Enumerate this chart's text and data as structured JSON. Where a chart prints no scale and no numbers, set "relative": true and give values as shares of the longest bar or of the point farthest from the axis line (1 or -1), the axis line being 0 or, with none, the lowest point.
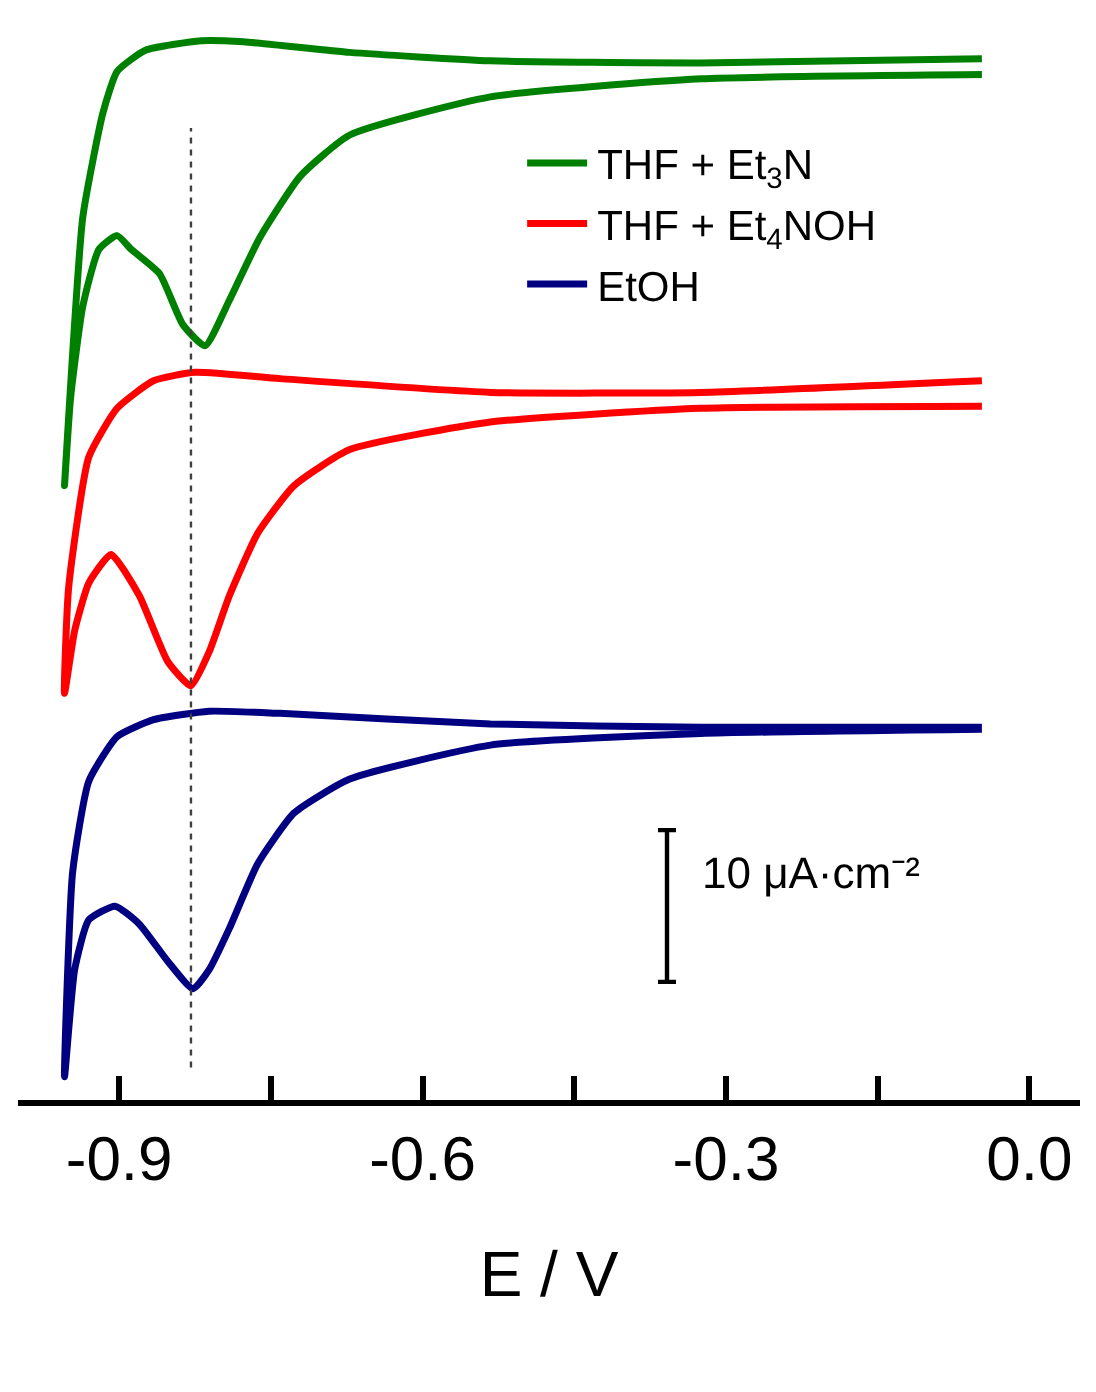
{
  "chart_data": {
    "type": "line",
    "relative": true,
    "xlabel": "E / V",
    "xlim": [
      -1.0,
      0.05
    ],
    "xticks": [
      -0.9,
      {
        "value": -0.75,
        "label": null
      },
      -0.6,
      {
        "value": -0.45,
        "label": null
      },
      -0.3,
      {
        "value": -0.15,
        "label": null
      },
      {
        "value": 0.0,
        "label": "0.0"
      }
    ],
    "series": [
      {
        "name": "THF + Et$_{3}$N",
        "color": "#008000",
        "x": [
          -0.047,
          -0.325,
          -0.533,
          -0.672,
          -0.721,
          -0.761,
          -0.791,
          -0.815,
          -0.837,
          -0.86,
          -0.888,
          -0.902,
          -0.92,
          -0.936,
          -0.948,
          -0.954,
          -0.936,
          -0.916,
          -0.902,
          -0.874,
          -0.819,
          -0.777,
          -0.672,
          -0.533,
          -0.325,
          -0.047
        ],
        "values": [
          0.968,
          0.964,
          0.947,
          0.911,
          0.872,
          0.814,
          0.755,
          0.712,
          0.732,
          0.78,
          0.803,
          0.816,
          0.803,
          0.749,
          0.663,
          0.58,
          0.833,
          0.932,
          0.971,
          0.991,
          1,
          0.999,
          0.989,
          0.981,
          0.979,
          0.983
        ]
      },
      {
        "name": "THF + Et$_{4}$NOH",
        "color": "#ff0000",
        "x": [
          -0.047,
          -0.325,
          -0.533,
          -0.672,
          -0.727,
          -0.763,
          -0.791,
          -0.811,
          -0.829,
          -0.852,
          -0.88,
          -0.908,
          -0.93,
          -0.944,
          -0.954,
          -0.95,
          -0.93,
          -0.902,
          -0.866,
          -0.825,
          -0.741,
          -0.533,
          -0.325,
          -0.047
        ],
        "values": [
          0.655,
          0.653,
          0.64,
          0.614,
          0.58,
          0.535,
          0.476,
          0.423,
          0.391,
          0.414,
          0.476,
          0.515,
          0.488,
          0.443,
          0.384,
          0.483,
          0.607,
          0.653,
          0.679,
          0.687,
          0.681,
          0.668,
          0.668,
          0.679
        ]
      },
      {
        "name": "EtOH",
        "color": "#000080",
        "x": [
          -0.047,
          -0.325,
          -0.533,
          -0.672,
          -0.727,
          -0.763,
          -0.791,
          -0.811,
          -0.827,
          -0.852,
          -0.88,
          -0.904,
          -0.93,
          -0.944,
          -0.954,
          -0.946,
          -0.93,
          -0.902,
          -0.866,
          -0.811,
          -0.741,
          -0.533,
          -0.325,
          -0.047
        ],
        "values": [
          0.35,
          0.346,
          0.335,
          0.303,
          0.271,
          0.223,
          0.162,
          0.123,
          0.105,
          0.131,
          0.166,
          0.183,
          0.17,
          0.123,
          0.022,
          0.215,
          0.301,
          0.343,
          0.359,
          0.367,
          0.365,
          0.355,
          0.352,
          0.352
        ]
      }
    ],
    "ref_lines": [
      {
        "axis": "x",
        "value": -0.829,
        "color": "#404040",
        "line_style": "dotted"
      }
    ],
    "annotations": [
      "10 μA·cm⁻²"
    ],
    "legend": "top right",
    "tick_labels": "x",
    "grid": false,
    "marker": "none",
    "line_style": "solid"
  }
}
